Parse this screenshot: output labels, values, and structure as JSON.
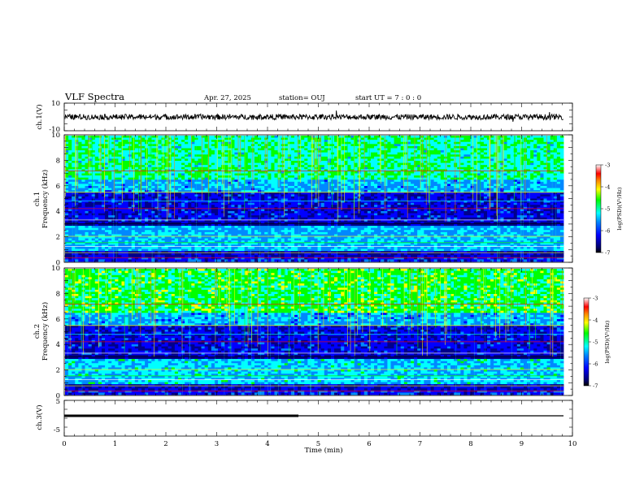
{
  "header": {
    "title": "VLF Spectra",
    "date": "Apr. 27, 2025",
    "station": "station= OUJ",
    "start": "start  UT  =    7 : 0  : 0"
  },
  "chart_data": [
    {
      "type": "line",
      "name": "ch1-waveform",
      "ylabel": "ch.1(V)",
      "ylim": [
        -10,
        10
      ],
      "ytick_labels": [
        "10",
        "-10"
      ],
      "xlim": [
        0,
        10
      ],
      "approx_level_V": 0,
      "approx_amplitude_V": 2
    },
    {
      "type": "heatmap",
      "name": "ch1-spectrogram",
      "ylabel": "ch.1\nFrequency (kHz)",
      "ylim": [
        0,
        10
      ],
      "yticks": [
        0,
        2,
        4,
        6,
        8,
        10
      ],
      "xlim": [
        0,
        9.83
      ],
      "colorbar": {
        "label": "log(PSD)(V²/Hz)",
        "ticks": [
          "-3",
          "-4",
          "-5",
          "-6",
          "-7"
        ],
        "range": [
          -7,
          -3
        ]
      },
      "colors": [
        "#00008b",
        "#0000ff",
        "#0088ff",
        "#00ffff",
        "#00ff00",
        "#ffff00",
        "#ff8800",
        "#ff0000",
        "#ffffff"
      ]
    },
    {
      "type": "heatmap",
      "name": "ch2-spectrogram",
      "ylabel": "ch.2\nFrequency (kHz)",
      "ylim": [
        0,
        10
      ],
      "yticks": [
        0,
        2,
        4,
        6,
        8,
        10
      ],
      "xlim": [
        0,
        9.83
      ],
      "colorbar": {
        "label": "log(PSD)(V²/Hz)",
        "ticks": [
          "-3",
          "-4",
          "-5",
          "-6",
          "-7"
        ],
        "range": [
          -7,
          -3
        ]
      }
    },
    {
      "type": "line",
      "name": "ch3-voltage",
      "ylabel": "ch.3(V)",
      "ylim": [
        -5,
        5
      ],
      "ytick_labels": [
        "5",
        "-5"
      ],
      "xlim": [
        0,
        10
      ],
      "segments": [
        {
          "x": [
            0,
            4.6
          ],
          "y": [
            0,
            0
          ],
          "style": "thick"
        },
        {
          "x": [
            4.6,
            9.83
          ],
          "y": [
            0,
            0
          ],
          "style": "thin"
        }
      ]
    }
  ],
  "xaxis": {
    "label": "Time (min)",
    "ticks": [
      "0",
      "1",
      "2",
      "3",
      "4",
      "5",
      "6",
      "7",
      "8",
      "9",
      "10"
    ]
  }
}
